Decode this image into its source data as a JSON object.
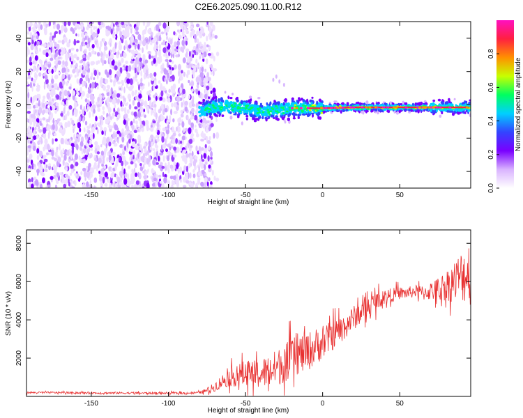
{
  "figure_title": "C2E6.2025.090.11.00.R12",
  "chart_data": [
    {
      "type": "heatmap",
      "xlabel": "Height of straight line (km)",
      "ylabel": "Frequency (Hz)",
      "xlim": [
        -192,
        96
      ],
      "ylim": [
        -50,
        50
      ],
      "x_ticks": [
        -150,
        -100,
        -50,
        0,
        50
      ],
      "y_ticks": [
        -40,
        -20,
        0,
        20,
        40
      ],
      "colorbar": {
        "label": "Normalized spectral amplitude",
        "range": [
          0,
          1
        ],
        "ticks": [
          0.0,
          0.2,
          0.4,
          0.6,
          0.8
        ],
        "tick_labels": [
          "0.0",
          "0.2",
          "0.4",
          "0.6",
          "0.8"
        ],
        "colors": [
          "#ffffff",
          "#d9b3ff",
          "#7a00ff",
          "#3344ff",
          "#00d0ff",
          "#00ff60",
          "#c8ff00",
          "#ff9000",
          "#ff2040",
          "#ff10c0"
        ]
      },
      "features": {
        "noise_region_x": [
          -192,
          -72
        ],
        "signal_band_x": [
          -80,
          96
        ],
        "signal_center_hz": [
          [
            -80,
            -4
          ],
          [
            -70,
            -1
          ],
          [
            -60,
            -1
          ],
          [
            -50,
            -2
          ],
          [
            -40,
            -4
          ],
          [
            -30,
            -3
          ],
          [
            -20,
            -2
          ],
          [
            -10,
            -2
          ],
          [
            0,
            -2
          ],
          [
            20,
            -1.5
          ],
          [
            50,
            -1.5
          ],
          [
            70,
            -1.5
          ],
          [
            90,
            -1.5
          ]
        ]
      }
    },
    {
      "type": "line",
      "xlabel": "Height of straight line (km)",
      "ylabel": "SNR (10 * v/v)",
      "xlim": [
        -192,
        96
      ],
      "ylim": [
        0,
        8700
      ],
      "x_ticks": [
        -150,
        -100,
        -50,
        0,
        50
      ],
      "y_ticks": [
        2000,
        4000,
        6000,
        8000
      ],
      "series": [
        {
          "color": "#e83030",
          "x": [
            -190,
            -170,
            -150,
            -130,
            -110,
            -90,
            -80,
            -75,
            -70,
            -65,
            -60,
            -55,
            -50,
            -45,
            -40,
            -35,
            -30,
            -25,
            -20,
            -15,
            -10,
            -5,
            0,
            5,
            10,
            15,
            20,
            25,
            30,
            35,
            40,
            45,
            50,
            55,
            60,
            65,
            70,
            75,
            80,
            85,
            90,
            95
          ],
          "y": [
            200,
            200,
            180,
            180,
            170,
            170,
            200,
            300,
            500,
            800,
            1000,
            1100,
            1200,
            1100,
            1200,
            1300,
            1500,
            1700,
            2000,
            2200,
            2300,
            2600,
            2800,
            3100,
            3400,
            3700,
            4100,
            4400,
            4700,
            5000,
            5200,
            5300,
            5400,
            5400,
            5500,
            5400,
            5500,
            5600,
            5800,
            6000,
            6300,
            6500
          ]
        }
      ],
      "noise_amplitude": [
        [
          -190,
          60
        ],
        [
          -80,
          70
        ],
        [
          -70,
          300
        ],
        [
          -60,
          600
        ],
        [
          -50,
          900
        ],
        [
          -40,
          1000
        ],
        [
          -30,
          1200
        ],
        [
          -20,
          1300
        ],
        [
          -10,
          1300
        ],
        [
          0,
          1100
        ],
        [
          10,
          900
        ],
        [
          20,
          800
        ],
        [
          30,
          700
        ],
        [
          40,
          500
        ],
        [
          50,
          400
        ],
        [
          60,
          400
        ],
        [
          70,
          600
        ],
        [
          80,
          1000
        ],
        [
          90,
          1700
        ],
        [
          95,
          2200
        ]
      ]
    }
  ]
}
